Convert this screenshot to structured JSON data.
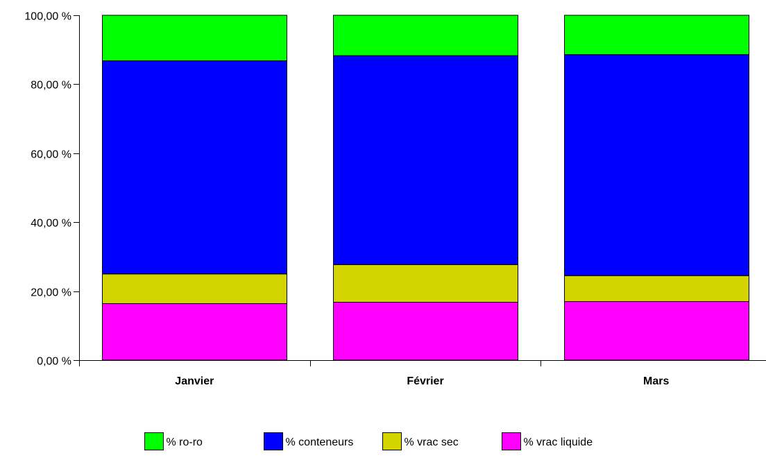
{
  "chart_data": {
    "type": "bar",
    "stacked": true,
    "categories": [
      "Janvier",
      "Février",
      "Mars"
    ],
    "series": [
      {
        "name": "% vrac liquide",
        "color": "#ff00ff",
        "values": [
          16.4,
          16.8,
          17.0
        ]
      },
      {
        "name": "% vrac sec",
        "color": "#d4d400",
        "values": [
          8.6,
          10.9,
          7.5
        ]
      },
      {
        "name": "% conteneurs",
        "color": "#0000ff",
        "values": [
          61.8,
          60.6,
          64.1
        ]
      },
      {
        "name": "% ro-ro",
        "color": "#00ff00",
        "values": [
          13.2,
          11.7,
          11.4
        ]
      }
    ],
    "legend_order": [
      "% ro-ro",
      "% conteneurs",
      "% vrac sec",
      "% vrac liquide"
    ],
    "y_ticks": [
      "0,00 %",
      "20,00 %",
      "40,00 %",
      "60,00 %",
      "80,00 %",
      "100,00 %"
    ],
    "ylim": [
      0,
      100
    ],
    "grid": false,
    "legend_position": "bottom-center",
    "title": "",
    "xlabel": "",
    "ylabel": ""
  }
}
